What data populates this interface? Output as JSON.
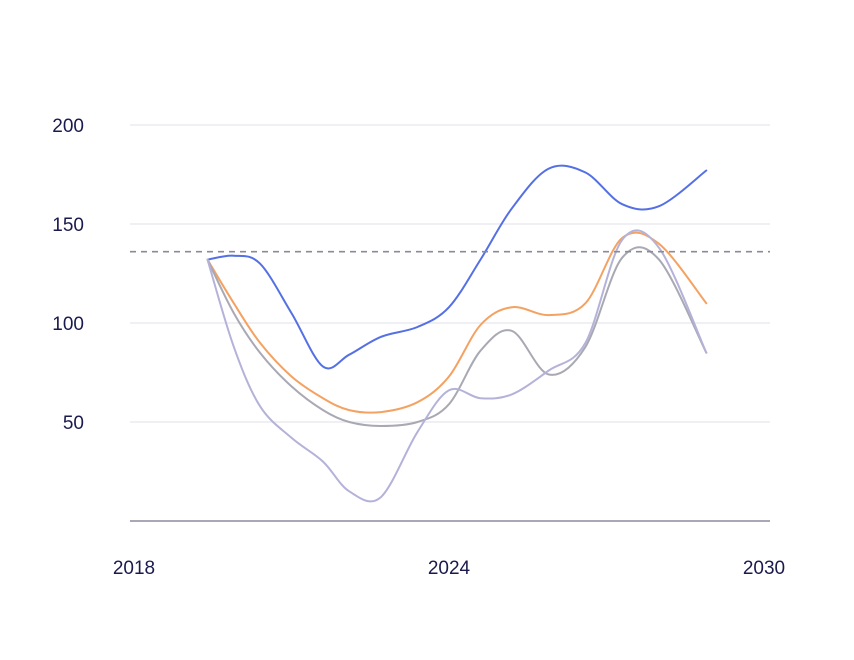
{
  "chart_data": {
    "type": "line",
    "xlim": [
      2018,
      2030
    ],
    "ylim": [
      0,
      200
    ],
    "x_ticks": [
      "2018",
      "2024",
      "2030"
    ],
    "y_ticks": [
      "50",
      "100",
      "150",
      "200"
    ],
    "grid": true,
    "reference_line": {
      "y": 136
    },
    "x": [
      2019.4,
      2019.9,
      2020.4,
      2021.0,
      2021.6,
      2022.1,
      2022.7,
      2023.4,
      2024.0,
      2024.6,
      2025.2,
      2025.9,
      2026.6,
      2027.3,
      2028.0,
      2028.9
    ],
    "series": [
      {
        "color": "#5470e4",
        "values": [
          132,
          134,
          130,
          105,
          78,
          84,
          93,
          98,
          108,
          132,
          158,
          178,
          176,
          160,
          159,
          177
        ]
      },
      {
        "color": "#f4a262",
        "values": [
          132,
          110,
          90,
          73,
          62,
          56,
          55,
          60,
          73,
          99,
          108,
          104,
          110,
          143,
          140,
          110
        ]
      },
      {
        "color": "#a9a9b4",
        "values": [
          132,
          105,
          85,
          68,
          56,
          50,
          48,
          50,
          59,
          86,
          96,
          74,
          88,
          133,
          132,
          85
        ]
      },
      {
        "color": "#b4b2d9",
        "values": [
          132,
          88,
          58,
          42,
          30,
          15,
          12,
          45,
          66,
          62,
          64,
          76,
          90,
          142,
          138,
          85
        ]
      }
    ]
  }
}
